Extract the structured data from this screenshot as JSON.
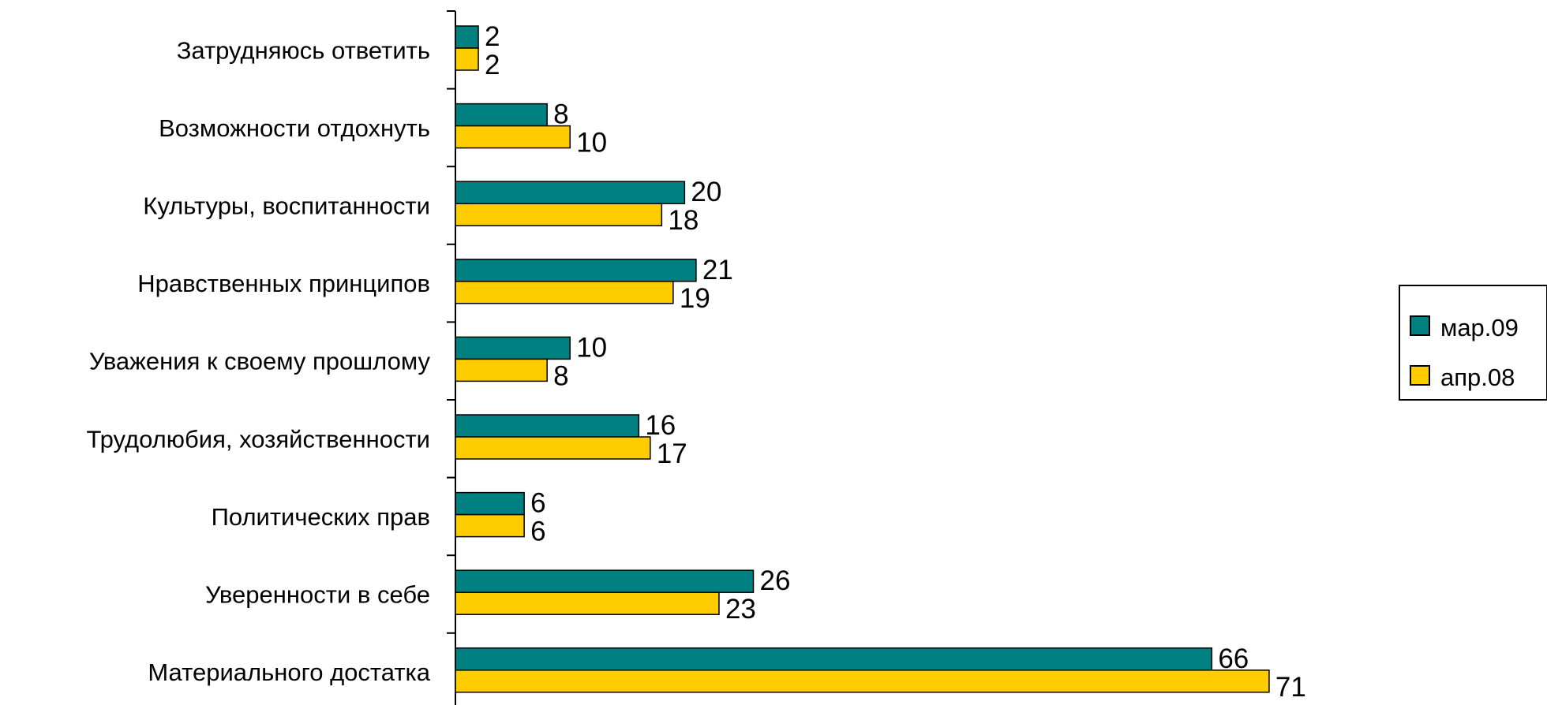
{
  "chart_data": {
    "type": "bar",
    "orientation": "horizontal",
    "categories": [
      "Затрудняюсь ответить",
      "Возможности отдохнуть",
      "Культуры, воспитанности",
      "Нравственных принципов",
      "Уважения к своему прошлому",
      "Трудолюбия, хозяйственности",
      "Политических прав",
      "Уверенности в себе",
      "Материального достатка"
    ],
    "series": [
      {
        "name": "мар.09",
        "color": "#008080",
        "values": [
          2,
          8,
          20,
          21,
          10,
          16,
          6,
          26,
          66
        ]
      },
      {
        "name": "апр.08",
        "color": "#FFCC00",
        "values": [
          2,
          10,
          18,
          19,
          8,
          17,
          6,
          23,
          71
        ]
      }
    ],
    "xlim": [
      0,
      71
    ],
    "grid": false,
    "legend": "right"
  }
}
